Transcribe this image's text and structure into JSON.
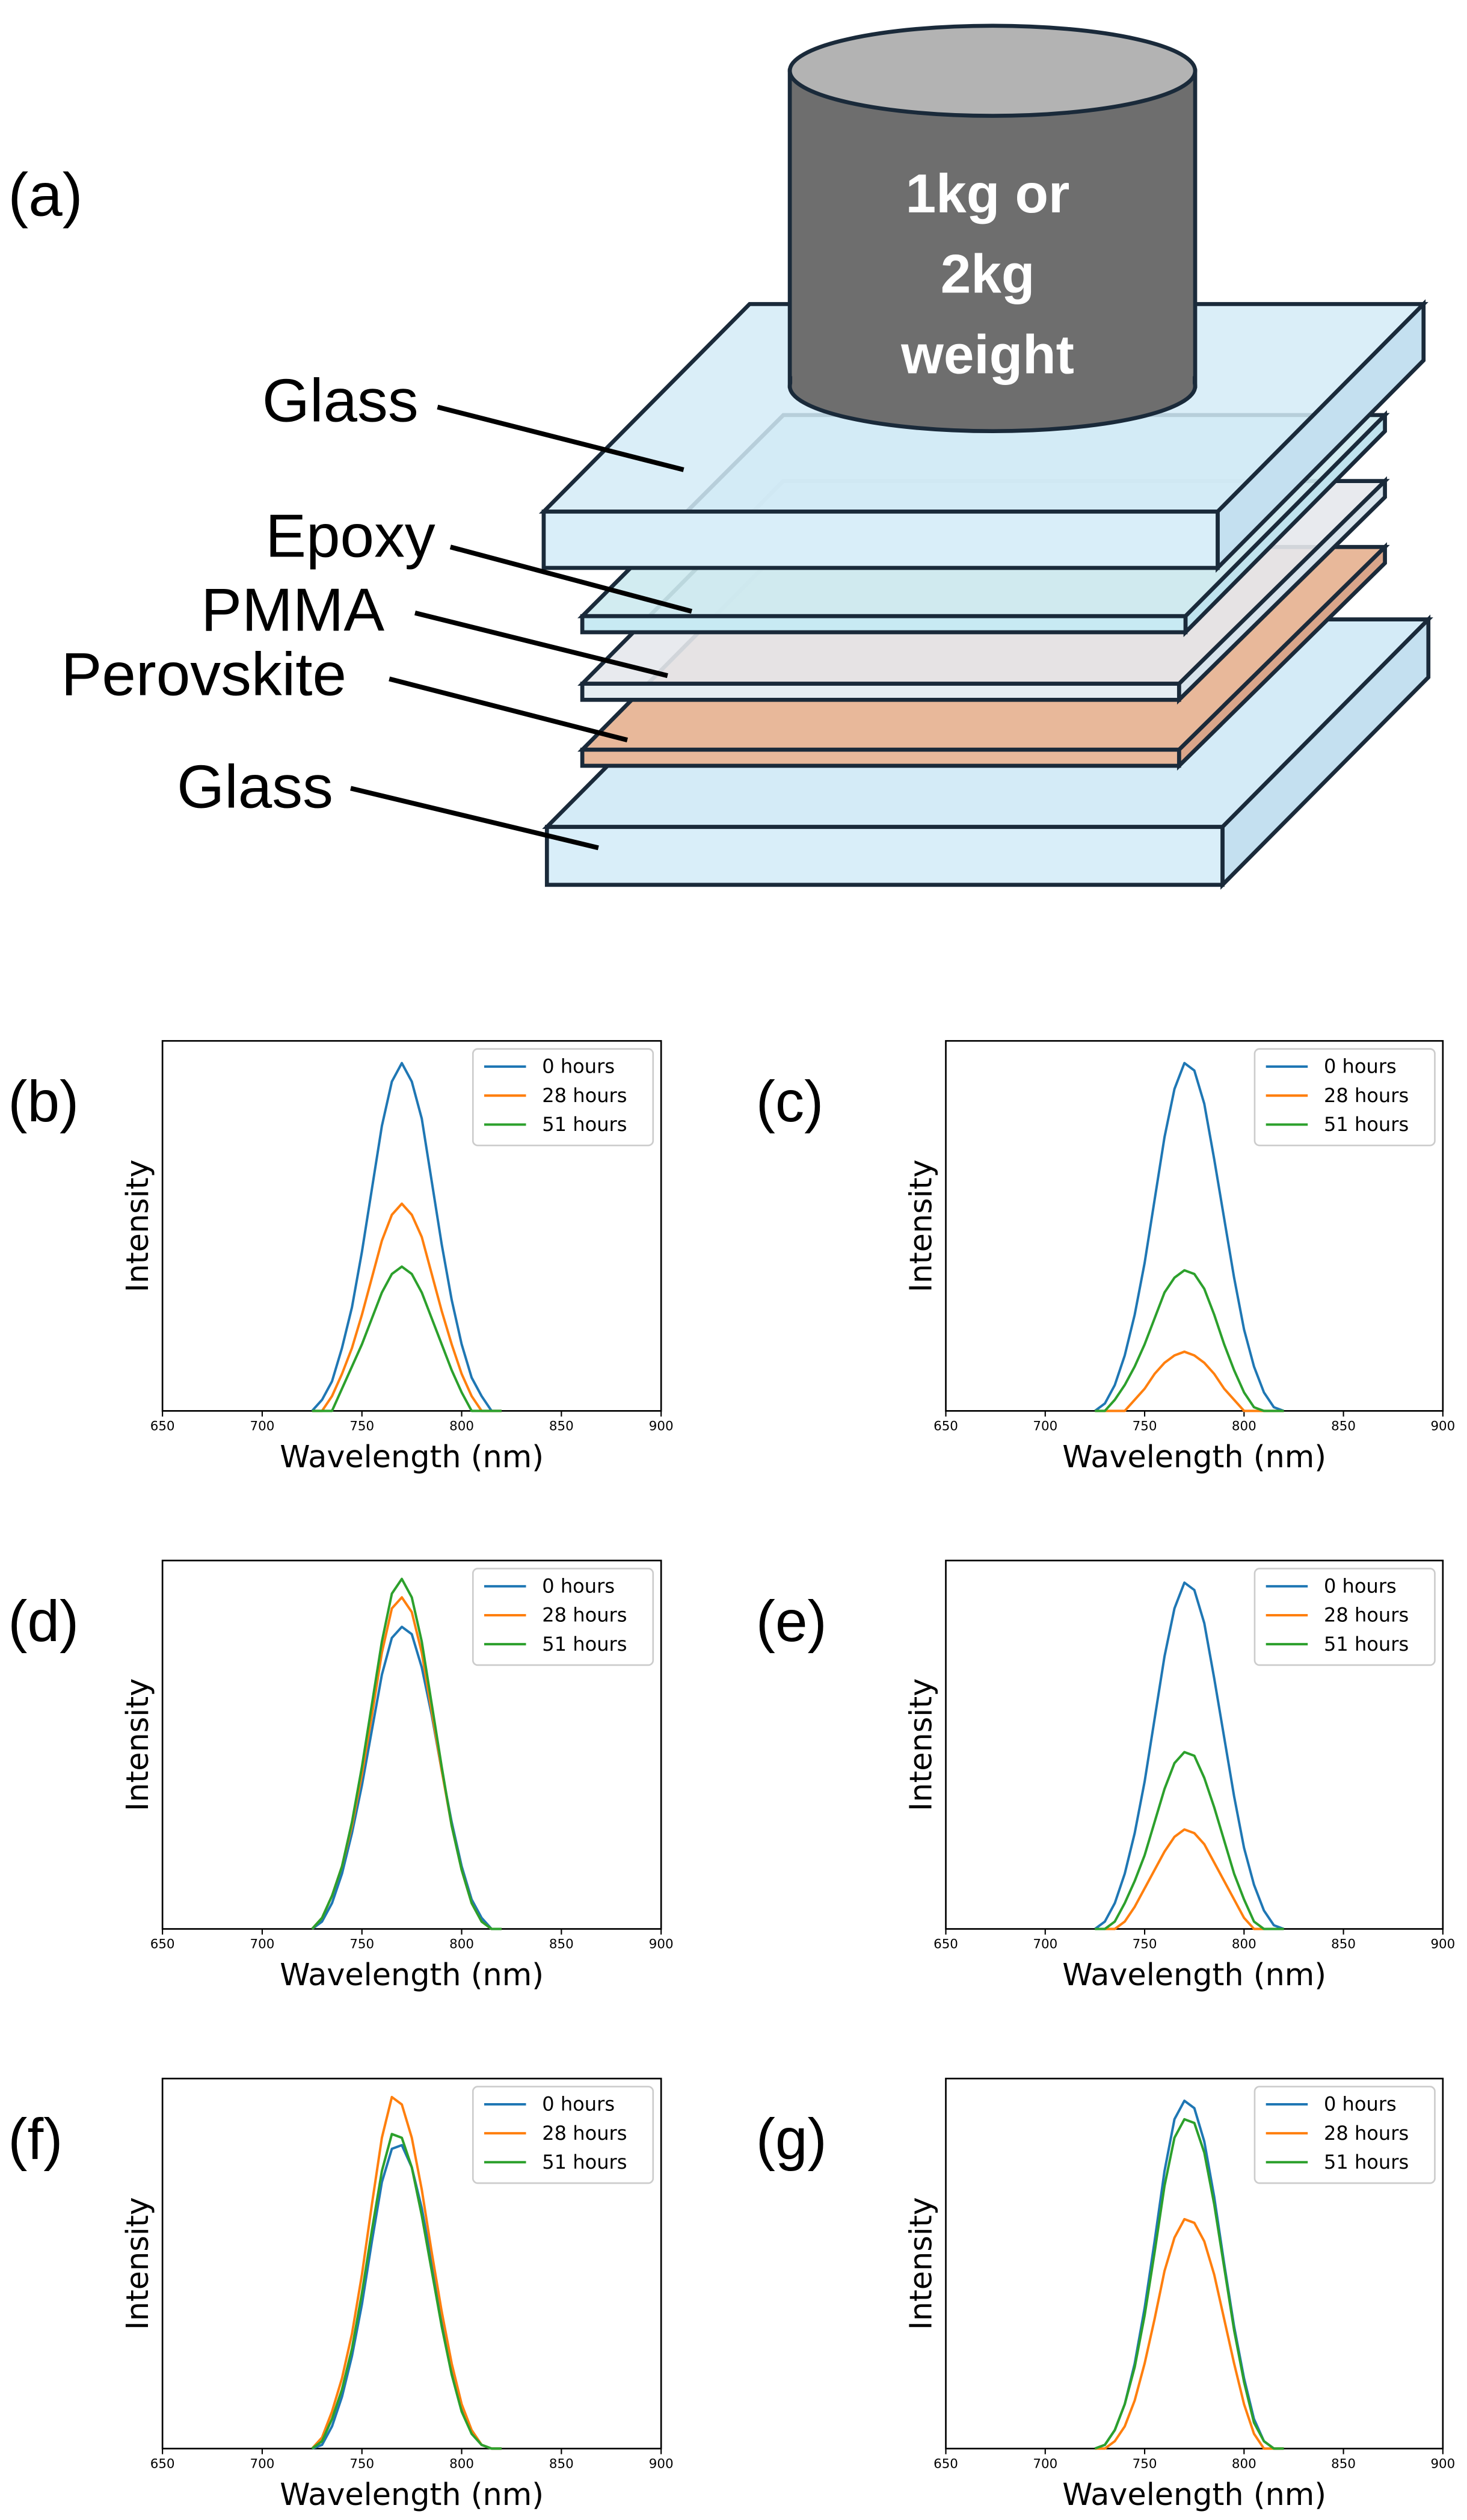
{
  "diagram": {
    "panel_label": "(a)",
    "weight_label": [
      "1kg or",
      "2kg",
      "weight"
    ],
    "layers": [
      "Glass",
      "Epoxy",
      "PMMA",
      "Perovskite",
      "Glass"
    ]
  },
  "chart_data": [
    {
      "type": "line",
      "panel_label": "(b)",
      "xlabel": "Wavelength (nm)",
      "ylabel": "Intensity",
      "legend": "upper right",
      "xlim": [
        650,
        900
      ],
      "xticks": [
        650,
        700,
        750,
        800,
        850,
        900
      ],
      "ylim": [
        0,
        100
      ],
      "x": [
        725,
        730,
        735,
        740,
        745,
        750,
        755,
        760,
        765,
        770,
        775,
        780,
        785,
        790,
        795,
        800,
        805,
        810,
        815,
        820
      ],
      "series": [
        {
          "name": "0 hours",
          "color": "#1f77b4",
          "values": [
            0,
            3,
            8,
            17,
            28,
            43,
            60,
            77,
            89,
            94,
            89,
            79,
            62,
            45,
            30,
            18,
            9,
            4,
            0,
            0
          ]
        },
        {
          "name": "28 hours",
          "color": "#ff7f0e",
          "values": [
            0,
            0,
            4,
            10,
            17,
            26,
            36,
            46,
            53,
            56,
            53,
            47,
            37,
            27,
            18,
            10,
            4,
            0,
            0,
            0
          ]
        },
        {
          "name": "51 hours",
          "color": "#2ca02c",
          "values": [
            0,
            0,
            0,
            6,
            12,
            18,
            25,
            32,
            37,
            39,
            37,
            32,
            25,
            18,
            11,
            5,
            0,
            0,
            0,
            0
          ]
        }
      ]
    },
    {
      "type": "line",
      "panel_label": "(c)",
      "xlabel": "Wavelength (nm)",
      "ylabel": "Intensity",
      "legend": "upper right",
      "xlim": [
        650,
        900
      ],
      "xticks": [
        650,
        700,
        750,
        800,
        850,
        900
      ],
      "ylim": [
        0,
        100
      ],
      "x": [
        725,
        730,
        735,
        740,
        745,
        750,
        755,
        760,
        765,
        770,
        775,
        780,
        785,
        790,
        795,
        800,
        805,
        810,
        815,
        820
      ],
      "series": [
        {
          "name": "0 hours",
          "color": "#1f77b4",
          "values": [
            0,
            2,
            7,
            15,
            26,
            40,
            57,
            74,
            87,
            94,
            92,
            83,
            68,
            52,
            36,
            22,
            12,
            5,
            1,
            0
          ]
        },
        {
          "name": "28 hours",
          "color": "#ff7f0e",
          "values": [
            0,
            0,
            0,
            0,
            3,
            6,
            10,
            13,
            15,
            16,
            15,
            13,
            10,
            6,
            3,
            0,
            0,
            0,
            0,
            0
          ]
        },
        {
          "name": "51 hours",
          "color": "#2ca02c",
          "values": [
            0,
            0,
            3,
            7,
            12,
            18,
            25,
            32,
            36,
            38,
            37,
            33,
            26,
            18,
            11,
            5,
            1,
            0,
            0,
            0
          ]
        }
      ]
    },
    {
      "type": "line",
      "panel_label": "(d)",
      "xlabel": "Wavelength (nm)",
      "ylabel": "Intensity",
      "legend": "upper right",
      "xlim": [
        650,
        900
      ],
      "xticks": [
        650,
        700,
        750,
        800,
        850,
        900
      ],
      "ylim": [
        0,
        100
      ],
      "x": [
        725,
        730,
        735,
        740,
        745,
        750,
        755,
        760,
        765,
        770,
        775,
        780,
        785,
        790,
        795,
        800,
        805,
        810,
        815,
        820
      ],
      "series": [
        {
          "name": "0 hours",
          "color": "#1f77b4",
          "values": [
            0,
            2,
            7,
            15,
            26,
            39,
            54,
            69,
            79,
            82,
            80,
            71,
            58,
            43,
            29,
            17,
            8,
            3,
            0,
            0
          ]
        },
        {
          "name": "28 hours",
          "color": "#ff7f0e",
          "values": [
            0,
            3,
            9,
            17,
            28,
            42,
            58,
            75,
            87,
            90,
            86,
            75,
            59,
            43,
            28,
            16,
            7,
            2,
            0,
            0
          ]
        },
        {
          "name": "51 hours",
          "color": "#2ca02c",
          "values": [
            0,
            3,
            9,
            17,
            29,
            44,
            61,
            78,
            91,
            95,
            90,
            78,
            61,
            44,
            28,
            16,
            7,
            2,
            0,
            0
          ]
        }
      ]
    },
    {
      "type": "line",
      "panel_label": "(e)",
      "xlabel": "Wavelength (nm)",
      "ylabel": "Intensity",
      "legend": "upper right",
      "xlim": [
        650,
        900
      ],
      "xticks": [
        650,
        700,
        750,
        800,
        850,
        900
      ],
      "ylim": [
        0,
        100
      ],
      "x": [
        725,
        730,
        735,
        740,
        745,
        750,
        755,
        760,
        765,
        770,
        775,
        780,
        785,
        790,
        795,
        800,
        805,
        810,
        815,
        820
      ],
      "series": [
        {
          "name": "0 hours",
          "color": "#1f77b4",
          "values": [
            0,
            2,
            7,
            15,
            26,
            40,
            57,
            74,
            87,
            94,
            92,
            83,
            68,
            52,
            36,
            22,
            12,
            5,
            1,
            0
          ]
        },
        {
          "name": "28 hours",
          "color": "#ff7f0e",
          "values": [
            0,
            0,
            0,
            2,
            6,
            11,
            16,
            21,
            25,
            27,
            26,
            23,
            18,
            13,
            8,
            3,
            0,
            0,
            0,
            0
          ]
        },
        {
          "name": "51 hours",
          "color": "#2ca02c",
          "values": [
            0,
            0,
            2,
            7,
            13,
            20,
            29,
            38,
            45,
            48,
            47,
            41,
            33,
            24,
            15,
            8,
            2,
            0,
            0,
            0
          ]
        }
      ]
    },
    {
      "type": "line",
      "panel_label": "(f)",
      "xlabel": "Wavelength (nm)",
      "ylabel": "Intensity",
      "legend": "upper right",
      "xlim": [
        650,
        900
      ],
      "xticks": [
        650,
        700,
        750,
        800,
        850,
        900
      ],
      "ylim": [
        0,
        100
      ],
      "x": [
        725,
        730,
        735,
        740,
        745,
        750,
        755,
        760,
        765,
        770,
        775,
        780,
        785,
        790,
        795,
        800,
        805,
        810,
        815,
        820
      ],
      "series": [
        {
          "name": "0 hours",
          "color": "#1f77b4",
          "values": [
            0,
            1,
            6,
            14,
            25,
            39,
            56,
            72,
            81,
            82,
            76,
            65,
            50,
            35,
            22,
            11,
            4,
            1,
            0,
            0
          ]
        },
        {
          "name": "28 hours",
          "color": "#ff7f0e",
          "values": [
            0,
            3,
            10,
            19,
            31,
            47,
            66,
            84,
            95,
            93,
            84,
            70,
            53,
            37,
            23,
            12,
            5,
            1,
            0,
            0
          ]
        },
        {
          "name": "51 hours",
          "color": "#2ca02c",
          "values": [
            0,
            2,
            8,
            16,
            27,
            42,
            59,
            75,
            85,
            84,
            76,
            63,
            48,
            33,
            20,
            10,
            4,
            1,
            0,
            0
          ]
        }
      ]
    },
    {
      "type": "line",
      "panel_label": "(g)",
      "xlabel": "Wavelength (nm)",
      "ylabel": "Intensity",
      "legend": "upper right",
      "xlim": [
        650,
        900
      ],
      "xticks": [
        650,
        700,
        750,
        800,
        850,
        900
      ],
      "ylim": [
        0,
        100
      ],
      "x": [
        725,
        730,
        735,
        740,
        745,
        750,
        755,
        760,
        765,
        770,
        775,
        780,
        785,
        790,
        795,
        800,
        805,
        810,
        815,
        820
      ],
      "series": [
        {
          "name": "0 hours",
          "color": "#1f77b4",
          "values": [
            0,
            1,
            5,
            12,
            23,
            38,
            56,
            75,
            89,
            94,
            92,
            83,
            68,
            50,
            33,
            19,
            8,
            2,
            0,
            0
          ]
        },
        {
          "name": "28 hours",
          "color": "#ff7f0e",
          "values": [
            0,
            0,
            2,
            6,
            13,
            23,
            35,
            48,
            57,
            62,
            61,
            56,
            47,
            35,
            23,
            12,
            4,
            0,
            0,
            0
          ]
        },
        {
          "name": "51 hours",
          "color": "#2ca02c",
          "values": [
            0,
            1,
            5,
            12,
            22,
            36,
            53,
            71,
            84,
            89,
            88,
            80,
            66,
            49,
            32,
            18,
            7,
            2,
            0,
            0
          ]
        }
      ]
    }
  ]
}
